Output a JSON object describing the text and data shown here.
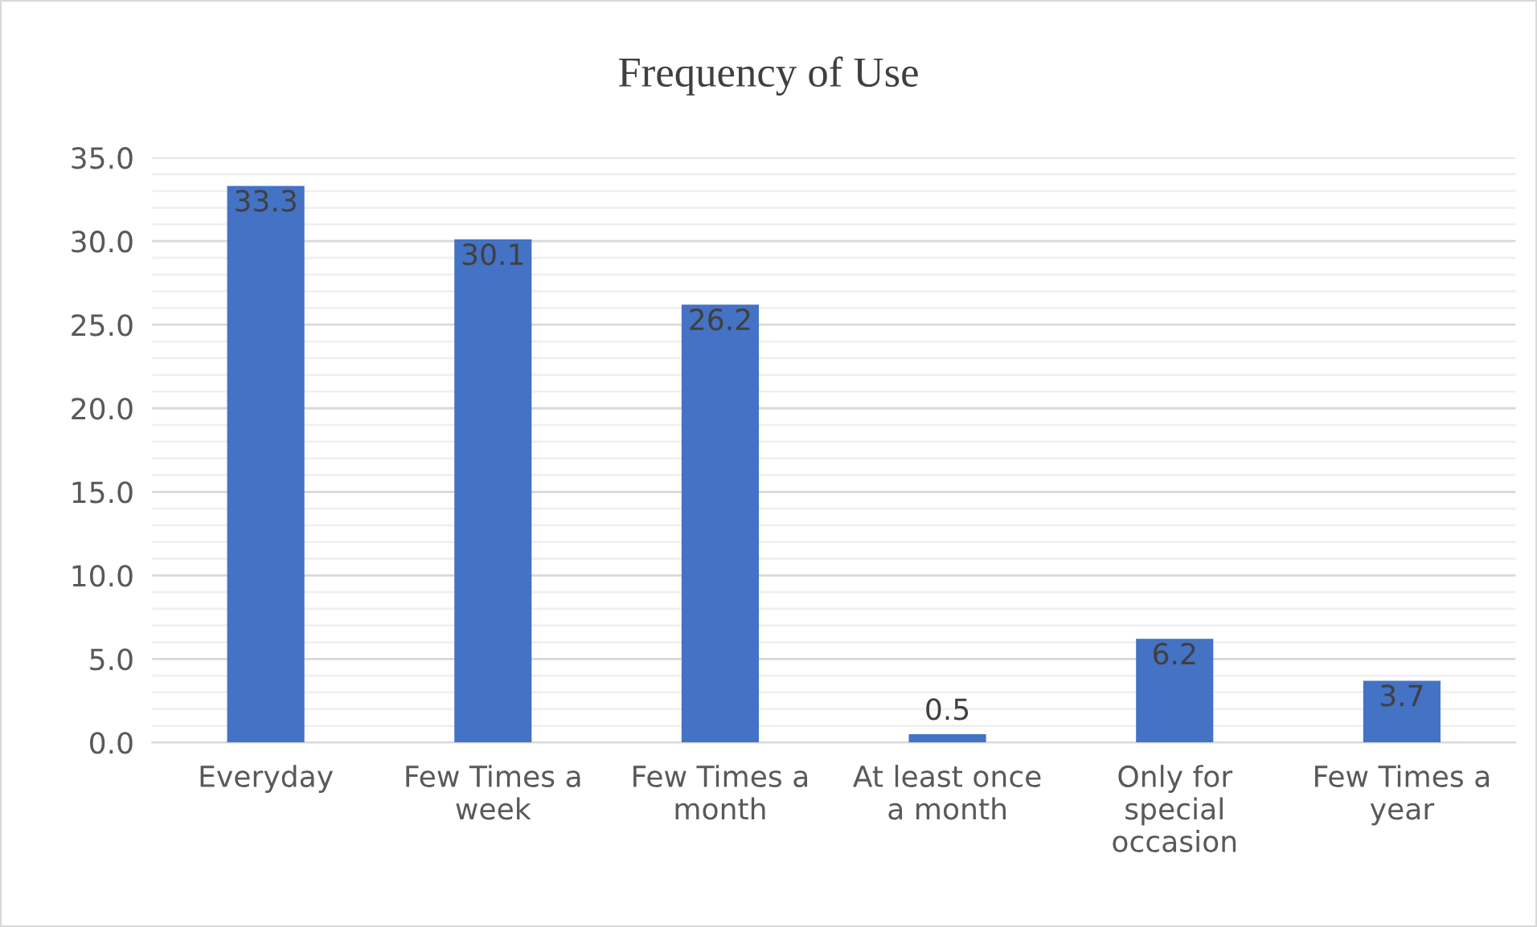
{
  "chart_data": {
    "type": "bar",
    "title": "Frequency of Use",
    "categories": [
      "Everyday",
      "Few Times a week",
      "Few Times a month",
      "At least once a month",
      "Only for special occasion",
      "Few Times a year"
    ],
    "values": [
      33.3,
      30.1,
      26.2,
      0.5,
      6.2,
      3.7
    ],
    "color": "#4472c4",
    "ylim": [
      0,
      35
    ],
    "yticks": [
      {
        "value": 0,
        "label": "0.0"
      },
      {
        "value": 1,
        "label": null
      },
      {
        "value": 2,
        "label": null
      },
      {
        "value": 3,
        "label": null
      },
      {
        "value": 4,
        "label": null
      },
      {
        "value": 5,
        "label": "5.0"
      },
      {
        "value": 6,
        "label": null
      },
      {
        "value": 7,
        "label": null
      },
      {
        "value": 8,
        "label": null
      },
      {
        "value": 9,
        "label": null
      },
      {
        "value": 10,
        "label": "10.0"
      },
      {
        "value": 11,
        "label": null
      },
      {
        "value": 12,
        "label": null
      },
      {
        "value": 13,
        "label": null
      },
      {
        "value": 14,
        "label": null
      },
      {
        "value": 15,
        "label": "15.0"
      },
      {
        "value": 16,
        "label": null
      },
      {
        "value": 17,
        "label": null
      },
      {
        "value": 18,
        "label": null
      },
      {
        "value": 19,
        "label": null
      },
      {
        "value": 20,
        "label": "20.0"
      },
      {
        "value": 21,
        "label": null
      },
      {
        "value": 22,
        "label": null
      },
      {
        "value": 23,
        "label": null
      },
      {
        "value": 24,
        "label": null
      },
      {
        "value": 25,
        "label": "25.0"
      },
      {
        "value": 26,
        "label": null
      },
      {
        "value": 27,
        "label": null
      },
      {
        "value": 28,
        "label": null
      },
      {
        "value": 29,
        "label": null
      },
      {
        "value": 30,
        "label": "30.0"
      },
      {
        "value": 31,
        "label": null
      },
      {
        "value": 32,
        "label": null
      },
      {
        "value": 33,
        "label": null
      },
      {
        "value": 34,
        "label": null
      },
      {
        "value": 35,
        "label": "35.0"
      }
    ],
    "grid": "y",
    "data_labels": true
  }
}
